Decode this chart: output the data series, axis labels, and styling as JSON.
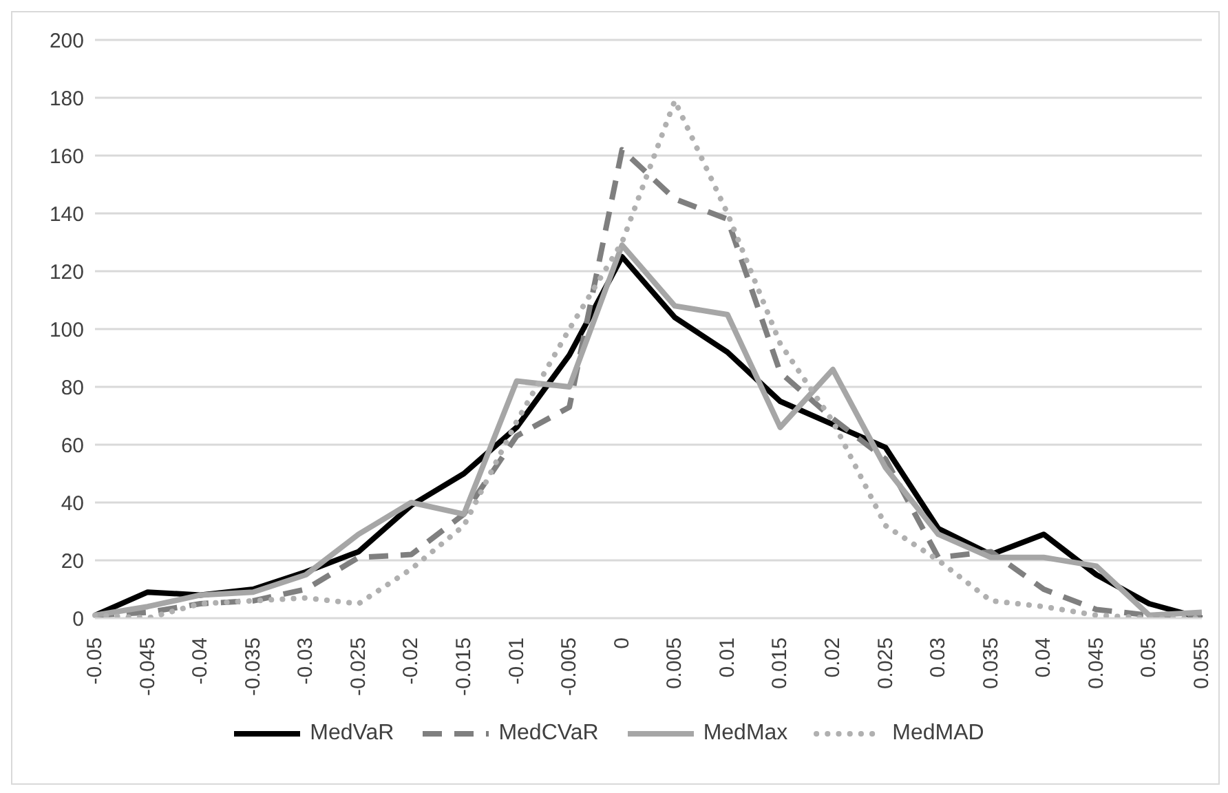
{
  "chart_data": {
    "type": "line",
    "categories": [
      "-0.05",
      "-0.045",
      "-0.04",
      "-0.035",
      "-0.03",
      "-0.025",
      "-0.02",
      "-0.015",
      "-0.01",
      "-0.005",
      "0",
      "0.005",
      "0.01",
      "0.015",
      "0.02",
      "0.025",
      "0.03",
      "0.035",
      "0.04",
      "0.045",
      "0.05",
      "0.055"
    ],
    "series": [
      {
        "name": "MedVaR",
        "color": "#000000",
        "line_style": "solid",
        "values": [
          1,
          9,
          8,
          10,
          16,
          23,
          39,
          50,
          66,
          91,
          125,
          104,
          92,
          75,
          67,
          59,
          31,
          22,
          29,
          15,
          5,
          0
        ]
      },
      {
        "name": "MedCVaR",
        "color": "#7f7f7f",
        "line_style": "dashed",
        "values": [
          1,
          2,
          5,
          6,
          10,
          21,
          22,
          36,
          63,
          73,
          162,
          145,
          138,
          85,
          69,
          55,
          21,
          23,
          10,
          3,
          1,
          1
        ]
      },
      {
        "name": "MedMax",
        "color": "#a6a6a6",
        "line_style": "solid",
        "values": [
          1,
          4,
          8,
          9,
          15,
          29,
          40,
          36,
          82,
          80,
          129,
          108,
          105,
          66,
          86,
          52,
          29,
          21,
          21,
          18,
          1,
          2
        ]
      },
      {
        "name": "MedMAD",
        "color": "#b0b0b0",
        "line_style": "dotted",
        "values": [
          1,
          0,
          5,
          6,
          7,
          5,
          17,
          32,
          68,
          100,
          130,
          179,
          140,
          95,
          68,
          32,
          20,
          6,
          4,
          1,
          0,
          0
        ]
      }
    ],
    "ylim": [
      0,
      200
    ],
    "yticks": [
      0,
      20,
      40,
      60,
      80,
      100,
      120,
      140,
      160,
      180,
      200
    ],
    "grid": "y",
    "legend": "bottom",
    "marker": "none"
  }
}
